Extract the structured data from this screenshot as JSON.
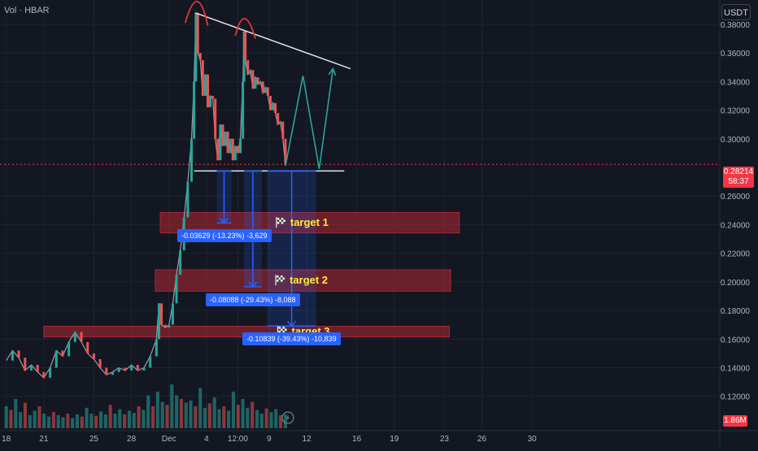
{
  "header": {
    "indicator_label": "Vol · HBAR",
    "currency_button": "USDT"
  },
  "price_tag": {
    "price": "0.28214",
    "countdown": "58:37"
  },
  "volume_tag": {
    "value": "1.86M"
  },
  "chart_data": {
    "type": "candlestick",
    "symbol": "HBAR",
    "quote_currency": "USDT",
    "y_axis": {
      "ylim": [
        0.096,
        0.397
      ],
      "ticks": [
        0.38,
        0.36,
        0.34,
        0.32,
        0.3,
        0.26,
        0.24,
        0.22,
        0.2,
        0.18,
        0.16,
        0.14,
        0.12
      ],
      "tick_labels": [
        "0.38000",
        "0.36000",
        "0.34000",
        "0.32000",
        "0.30000",
        "0.26000",
        "0.24000",
        "0.22000",
        "0.20000",
        "0.18000",
        "0.16000",
        "0.14000",
        "0.12000"
      ]
    },
    "x_axis": {
      "range_index": [
        -0.5,
        57
      ],
      "ticks": [
        {
          "index": 0,
          "label": "18"
        },
        {
          "index": 3,
          "label": "21"
        },
        {
          "index": 7,
          "label": "25"
        },
        {
          "index": 10,
          "label": "28"
        },
        {
          "index": 13,
          "label": "Dec"
        },
        {
          "index": 16,
          "label": "4"
        },
        {
          "index": 18.5,
          "label": "12:00"
        },
        {
          "index": 21,
          "label": "9"
        },
        {
          "index": 24,
          "label": "12"
        },
        {
          "index": 28,
          "label": "16"
        },
        {
          "index": 31,
          "label": "19"
        },
        {
          "index": 35,
          "label": "23"
        },
        {
          "index": 38,
          "label": "26"
        },
        {
          "index": 42,
          "label": "30"
        }
      ]
    },
    "price_path": [
      [
        0,
        0.145
      ],
      [
        0.5,
        0.152
      ],
      [
        1,
        0.147
      ],
      [
        1.5,
        0.138
      ],
      [
        2,
        0.142
      ],
      [
        2.5,
        0.137
      ],
      [
        3,
        0.133
      ],
      [
        3.5,
        0.14
      ],
      [
        4,
        0.152
      ],
      [
        4.5,
        0.148
      ],
      [
        5,
        0.158
      ],
      [
        5.5,
        0.165
      ],
      [
        6,
        0.158
      ],
      [
        6.5,
        0.15
      ],
      [
        7,
        0.146
      ],
      [
        7.5,
        0.14
      ],
      [
        8,
        0.135
      ],
      [
        8.5,
        0.137
      ],
      [
        9,
        0.14
      ],
      [
        9.5,
        0.138
      ],
      [
        10,
        0.142
      ],
      [
        10.5,
        0.138
      ],
      [
        11,
        0.14
      ],
      [
        11.5,
        0.148
      ],
      [
        12,
        0.16
      ],
      [
        12.2,
        0.185
      ],
      [
        12.4,
        0.17
      ],
      [
        12.7,
        0.168
      ],
      [
        13,
        0.17
      ],
      [
        13.3,
        0.185
      ],
      [
        13.6,
        0.205
      ],
      [
        13.9,
        0.222
      ],
      [
        14.2,
        0.245
      ],
      [
        14.5,
        0.27
      ],
      [
        14.8,
        0.3
      ],
      [
        15.0,
        0.34
      ],
      [
        15.15,
        0.388
      ],
      [
        15.3,
        0.36
      ],
      [
        15.5,
        0.355
      ],
      [
        15.7,
        0.33
      ],
      [
        15.9,
        0.345
      ],
      [
        16.1,
        0.322
      ],
      [
        16.3,
        0.33
      ],
      [
        16.5,
        0.328
      ],
      [
        16.7,
        0.3
      ],
      [
        16.9,
        0.285
      ],
      [
        17.1,
        0.31
      ],
      [
        17.3,
        0.295
      ],
      [
        17.5,
        0.305
      ],
      [
        17.7,
        0.29
      ],
      [
        17.9,
        0.3
      ],
      [
        18.1,
        0.285
      ],
      [
        18.3,
        0.295
      ],
      [
        18.5,
        0.29
      ],
      [
        18.7,
        0.3
      ],
      [
        18.9,
        0.34
      ],
      [
        19.0,
        0.375
      ],
      [
        19.1,
        0.355
      ],
      [
        19.3,
        0.345
      ],
      [
        19.5,
        0.348
      ],
      [
        19.7,
        0.335
      ],
      [
        19.9,
        0.343
      ],
      [
        20.1,
        0.338
      ],
      [
        20.3,
        0.34
      ],
      [
        20.5,
        0.332
      ],
      [
        20.7,
        0.336
      ],
      [
        20.9,
        0.33
      ],
      [
        21.1,
        0.32
      ],
      [
        21.3,
        0.325
      ],
      [
        21.5,
        0.318
      ],
      [
        21.7,
        0.31
      ],
      [
        21.9,
        0.312
      ],
      [
        22.1,
        0.3
      ],
      [
        22.3,
        0.282
      ]
    ],
    "volume": {
      "ylim": [
        0,
        8
      ],
      "values": [
        3.0,
        2.5,
        4.0,
        2.2,
        3.5,
        1.8,
        2.4,
        3.0,
        2.0,
        1.6,
        2.2,
        1.8,
        1.5,
        2.0,
        1.4,
        1.9,
        1.6,
        2.8,
        2.0,
        1.7,
        2.3,
        1.9,
        3.2,
        2.0,
        2.6,
        1.9,
        2.4,
        2.1,
        3.0,
        2.5,
        4.5,
        3.0,
        5.0,
        3.6,
        3.2,
        6.0,
        4.5,
        4.0,
        3.5,
        3.8,
        3.0,
        5.5,
        2.8,
        3.4,
        4.2,
        2.6,
        3.0,
        2.4,
        5.0,
        3.2,
        4.0,
        2.8,
        3.6,
        2.5,
        2.0,
        2.7,
        2.2,
        2.6,
        1.8,
        1.9
      ]
    },
    "annotations": {
      "current_price_line": 0.28214,
      "neckline": {
        "from": [
          15.0,
          0.2775
        ],
        "to": [
          27.0,
          0.2775
        ]
      },
      "resistance_trendline": {
        "from": [
          15.1,
          0.388
        ],
        "to": [
          27.5,
          0.349
        ]
      },
      "arcs": [
        {
          "from": [
            14.3,
            0.381
          ],
          "peak": [
            15.3,
            0.396
          ],
          "to": [
            16.1,
            0.379
          ]
        },
        {
          "from": [
            18.3,
            0.372
          ],
          "peak": [
            19.0,
            0.384
          ],
          "to": [
            19.9,
            0.37
          ]
        }
      ],
      "projection_path": [
        [
          22.3,
          0.281
        ],
        [
          23.7,
          0.344
        ],
        [
          25.0,
          0.279
        ],
        [
          26.1,
          0.349
        ]
      ],
      "target_zones": [
        {
          "label": "target 1",
          "x": [
            12.3,
            36.2
          ],
          "y": [
            0.2342,
            0.2485
          ]
        },
        {
          "label": "target 2",
          "x": [
            11.9,
            35.5
          ],
          "y": [
            0.1935,
            0.2085
          ]
        },
        {
          "label": "target 3",
          "x": [
            3.0,
            35.4
          ],
          "y": [
            0.1615,
            0.169
          ]
        }
      ],
      "measurements": [
        {
          "label": "-0.03629 (-13.23%) -3,629",
          "x": 17.4,
          "from": 0.2775,
          "to": 0.2412
        },
        {
          "label": "-0.08088 (-29.43%) -8,088",
          "x": 19.7,
          "from": 0.2775,
          "to": 0.1966
        },
        {
          "label": "-0.10839 (-39.43%) -10,839",
          "x": 22.8,
          "from": 0.2775,
          "to": 0.1691
        }
      ]
    }
  }
}
